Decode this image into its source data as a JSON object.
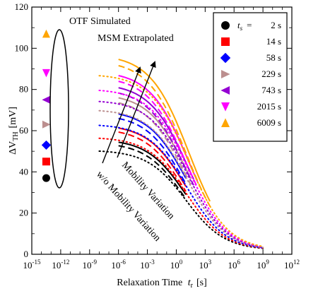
{
  "chart_data": {
    "type": "line",
    "xlabel_main": "Relaxation Time",
    "xlabel_var": "t",
    "xlabel_sub": "r",
    "xlabel_unit": "[s]",
    "ylabel_prefix": "ΔV",
    "ylabel_sub": "TH",
    "ylabel_unit": "[mV]",
    "x_scale": "log10",
    "xlim_exp": [
      -15,
      12
    ],
    "ylim": [
      0,
      120
    ],
    "x_tick_exps": [
      -15,
      -12,
      -9,
      -6,
      -3,
      0,
      3,
      6,
      9,
      12
    ],
    "y_ticks": [
      0,
      20,
      40,
      60,
      80,
      100,
      120
    ],
    "annotations": {
      "otf": "OTF Simulated",
      "msm": "MSM Extrapolated",
      "mobility": "Mobility Variation",
      "wo_mobility": "w/o Mobility Variation"
    },
    "legend": {
      "header_var": "t",
      "header_sub": "s",
      "header_eq": "=",
      "entries": [
        {
          "label": "2 s",
          "marker": "circle",
          "color": "#000000"
        },
        {
          "label": "14 s",
          "marker": "square",
          "color": "#ff0000"
        },
        {
          "label": "58 s",
          "marker": "diamond",
          "color": "#0000ff"
        },
        {
          "label": "229 s",
          "marker": "triangle-right",
          "color": "#bc8f8f"
        },
        {
          "label": "743 s",
          "marker": "triangle-left",
          "color": "#9400d3"
        },
        {
          "label": "2015 s",
          "marker": "triangle-down",
          "color": "#ff00ff"
        },
        {
          "label": "6009 s",
          "marker": "triangle-up",
          "color": "#ffa500"
        }
      ]
    },
    "otf_points": {
      "x_exp": -13.5,
      "y": [
        37,
        45,
        53,
        63,
        75,
        88,
        107
      ]
    },
    "series": [
      {
        "name": "2 s",
        "color": "#000000",
        "A": 54,
        "x_end_exp": 1,
        "y0_dot": 45
      },
      {
        "name": "14 s",
        "color": "#ff0000",
        "A": 61,
        "x_end_exp": 1,
        "y0_dot": 50
      },
      {
        "name": "58 s",
        "color": "#0000ff",
        "A": 68,
        "x_end_exp": 1,
        "y0_dot": 56
      },
      {
        "name": "229 s",
        "color": "#bc8f8f",
        "A": 76,
        "x_end_exp": 1.5,
        "y0_dot": 62
      },
      {
        "name": "743 s",
        "color": "#9400d3",
        "A": 81,
        "x_end_exp": 1.8,
        "y0_dot": 68
      },
      {
        "name": "2015 s",
        "color": "#ff00ff",
        "A": 87,
        "x_end_exp": 2.2,
        "y0_dot": 75
      },
      {
        "name": "6009 s",
        "color": "#ffa500",
        "A": 95,
        "x_end_exp": 3.5,
        "y0_dot": 86
      }
    ]
  }
}
